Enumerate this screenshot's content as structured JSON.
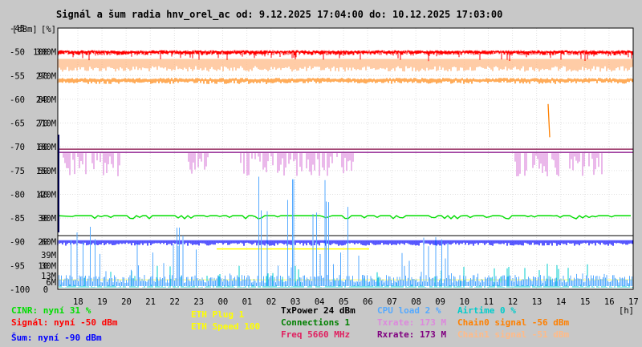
{
  "chart_data": {
    "type": "line",
    "title": "Signál a šum radia hnv_orel_ac od: 9.12.2025 17:04:00 do: 10.12.2025 17:03:00",
    "unit_labels": [
      "[dBm]",
      "[%]"
    ],
    "x_unit": "[h]",
    "x_ticks": [
      "18",
      "19",
      "20",
      "21",
      "22",
      "23",
      "00",
      "01",
      "02",
      "03",
      "04",
      "05",
      "06",
      "07",
      "08",
      "09",
      "10",
      "11",
      "12",
      "13",
      "14",
      "15",
      "16",
      "17"
    ],
    "y_ticks_dbm": [
      "-45",
      "-50",
      "-55",
      "-60",
      "-65",
      "-70",
      "-75",
      "-80",
      "-85",
      "-90",
      "-95",
      "-100"
    ],
    "y_ticks_pct": [
      "100",
      "90",
      "80",
      "70",
      "60",
      "50",
      "40",
      "30",
      "20",
      "10",
      "0"
    ],
    "y_ticks_rate": [
      "300M",
      "270M",
      "240M",
      "210M",
      "180M",
      "150M",
      "120M",
      "90M",
      "60M",
      "30M"
    ],
    "y_ticks_rate_colored": [
      {
        "label": "39M",
        "color": "#dd88dd"
      },
      {
        "label": "13M",
        "color": "#dd88dd"
      },
      {
        "label": "6M",
        "color": "#dd88dd"
      }
    ],
    "ylim_dbm": [
      -100,
      -45
    ],
    "ylim_pct": [
      0,
      100
    ],
    "ylim_rate_mbps": [
      0,
      300
    ],
    "series": [
      {
        "name": "Signál",
        "unit": "dBm",
        "color": "#ff0000",
        "level": -50
      },
      {
        "name": "Chain0 signal",
        "unit": "dBm",
        "color": "#ff8000",
        "level": -56
      },
      {
        "name": "Chain1 signal",
        "unit": "dBm",
        "color": "#ffbb88",
        "level": -51
      },
      {
        "name": "TxPower",
        "unit": "dBm",
        "color": "#800040",
        "level": 24
      },
      {
        "name": "Txrate",
        "unit": "Mbps",
        "color": "#dd88dd",
        "level": 173
      },
      {
        "name": "Rxrate",
        "unit": "Mbps",
        "color": "#800080",
        "level": 173
      },
      {
        "name": "CINR",
        "unit": "%",
        "color": "#00dd00",
        "level": 31
      },
      {
        "name": "Šum",
        "unit": "dBm",
        "color": "#0000ff",
        "level": -90
      },
      {
        "name": "Connections",
        "unit": "count",
        "color": "#008000",
        "level": 1
      },
      {
        "name": "ETH Plug",
        "color": "#ffff00",
        "level": 1
      },
      {
        "name": "ETH Speed",
        "unit": "Mbps",
        "color": "#ffff00",
        "level": 100
      },
      {
        "name": "CPU load",
        "unit": "%",
        "color": "#55aaff",
        "level": 2
      },
      {
        "name": "Airtime",
        "unit": "%",
        "color": "#00cccc",
        "level": 0
      },
      {
        "name": "Freq",
        "unit": "MHz",
        "color": "#e02060",
        "level": 5660
      }
    ],
    "legend": [
      {
        "text": "CINR: nyní 31 %",
        "color": "#00dd00"
      },
      {
        "text": "Signál: nyní -50 dBm",
        "color": "#ff0000"
      },
      {
        "text": "Šum: nyní -90 dBm",
        "color": "#0000ff"
      },
      {
        "text": "ETH Plug 1",
        "color": "#ffff00"
      },
      {
        "text": "ETH Speed 100",
        "color": "#ffff00"
      },
      {
        "text": "TxPower 24 dBm",
        "color": "#000000"
      },
      {
        "text": "Connections 1",
        "color": "#008000"
      },
      {
        "text": "Freq 5660 MHz",
        "color": "#e02060"
      },
      {
        "text": "CPU load 2 %",
        "color": "#55aaff"
      },
      {
        "text": "Txrate: 173 M",
        "color": "#dd88dd"
      },
      {
        "text": "Rxrate: 173 M",
        "color": "#800080"
      },
      {
        "text": "Airtime 0 %",
        "color": "#00cccc"
      },
      {
        "text": "Chain0 signal -56 dBm",
        "color": "#ff8000"
      },
      {
        "text": "Chain1 signal -51 dBm",
        "color": "#ffbb88"
      }
    ],
    "grid": true
  }
}
